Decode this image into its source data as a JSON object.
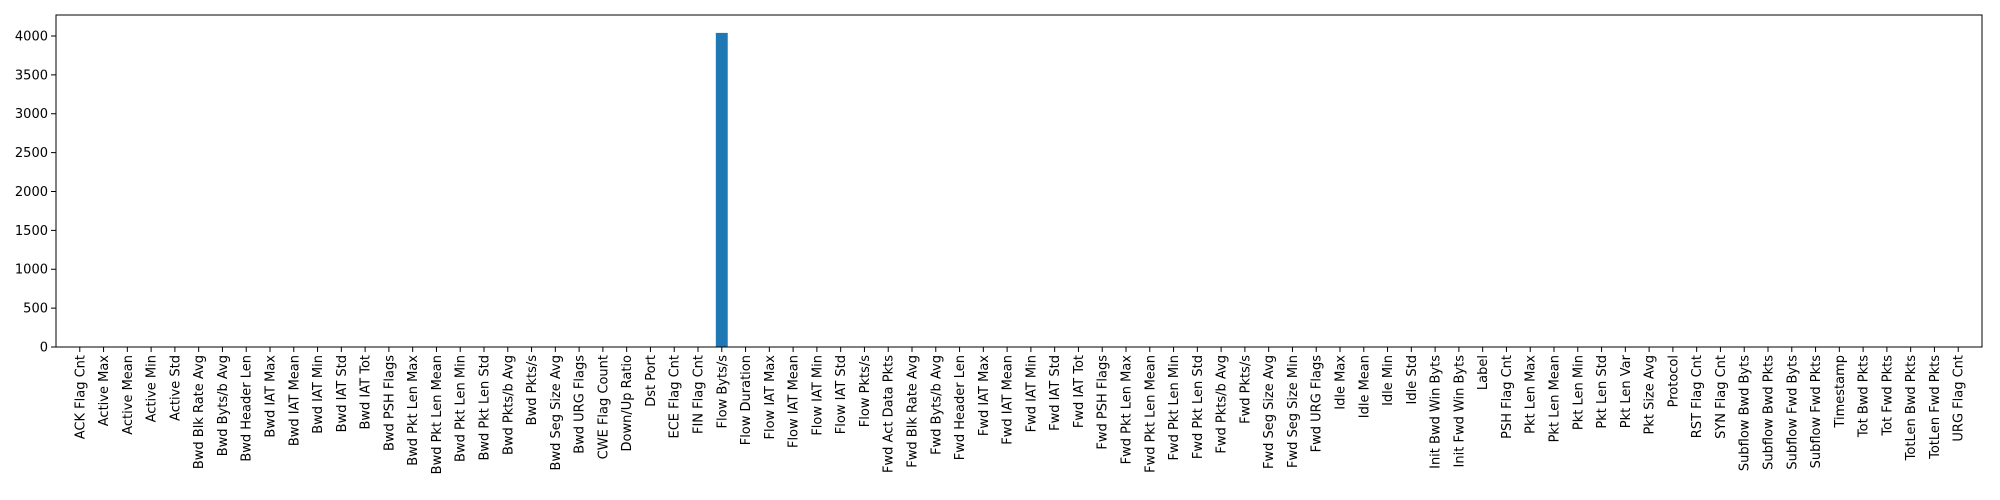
{
  "chart_data": {
    "type": "bar",
    "title": "",
    "xlabel": "",
    "ylabel": "",
    "ylim": [
      0,
      4270
    ],
    "yticks": [
      0,
      500,
      1000,
      1500,
      2000,
      2500,
      3000,
      3500,
      4000
    ],
    "bar_color": "#1f77b4",
    "grid": false,
    "legend": "none",
    "categories": [
      "ACK Flag Cnt",
      "Active Max",
      "Active Mean",
      "Active Min",
      "Active Std",
      "Bwd Blk Rate Avg",
      "Bwd Byts/b Avg",
      "Bwd Header Len",
      "Bwd IAT Max",
      "Bwd IAT Mean",
      "Bwd IAT Min",
      "Bwd IAT Std",
      "Bwd IAT Tot",
      "Bwd PSH Flags",
      "Bwd Pkt Len Max",
      "Bwd Pkt Len Mean",
      "Bwd Pkt Len Min",
      "Bwd Pkt Len Std",
      "Bwd Pkts/b Avg",
      "Bwd Pkts/s",
      "Bwd Seg Size Avg",
      "Bwd URG Flags",
      "CWE Flag Count",
      "Down/Up Ratio",
      "Dst Port",
      "ECE Flag Cnt",
      "FIN Flag Cnt",
      "Flow Byts/s",
      "Flow Duration",
      "Flow IAT Max",
      "Flow IAT Mean",
      "Flow IAT Min",
      "Flow IAT Std",
      "Flow Pkts/s",
      "Fwd Act Data Pkts",
      "Fwd Blk Rate Avg",
      "Fwd Byts/b Avg",
      "Fwd Header Len",
      "Fwd IAT Max",
      "Fwd IAT Mean",
      "Fwd IAT Min",
      "Fwd IAT Std",
      "Fwd IAT Tot",
      "Fwd PSH Flags",
      "Fwd Pkt Len Max",
      "Fwd Pkt Len Mean",
      "Fwd Pkt Len Min",
      "Fwd Pkt Len Std",
      "Fwd Pkts/b Avg",
      "Fwd Pkts/s",
      "Fwd Seg Size Avg",
      "Fwd Seg Size Min",
      "Fwd URG Flags",
      "Idle Max",
      "Idle Mean",
      "Idle Min",
      "Idle Std",
      "Init Bwd Win Byts",
      "Init Fwd Win Byts",
      "Label",
      "PSH Flag Cnt",
      "Pkt Len Max",
      "Pkt Len Mean",
      "Pkt Len Min",
      "Pkt Len Std",
      "Pkt Len Var",
      "Pkt Size Avg",
      "Protocol",
      "RST Flag Cnt",
      "SYN Flag Cnt",
      "Subflow Bwd Byts",
      "Subflow Bwd Pkts",
      "Subflow Fwd Byts",
      "Subflow Fwd Pkts",
      "Timestamp",
      "Tot Bwd Pkts",
      "Tot Fwd Pkts",
      "TotLen Bwd Pkts",
      "TotLen Fwd Pkts",
      "URG Flag Cnt"
    ],
    "values": [
      0,
      0,
      0,
      0,
      0,
      0,
      0,
      0,
      0,
      0,
      0,
      0,
      0,
      0,
      0,
      0,
      0,
      0,
      0,
      0,
      0,
      0,
      0,
      0,
      0,
      0,
      0,
      4040,
      0,
      0,
      0,
      0,
      0,
      0,
      0,
      0,
      0,
      0,
      0,
      0,
      0,
      0,
      0,
      0,
      0,
      0,
      0,
      0,
      0,
      0,
      0,
      0,
      0,
      0,
      0,
      0,
      0,
      0,
      0,
      0,
      0,
      0,
      0,
      0,
      0,
      0,
      0,
      0,
      0,
      0,
      0,
      0,
      0,
      0,
      0,
      0,
      0,
      0,
      0,
      0
    ]
  }
}
